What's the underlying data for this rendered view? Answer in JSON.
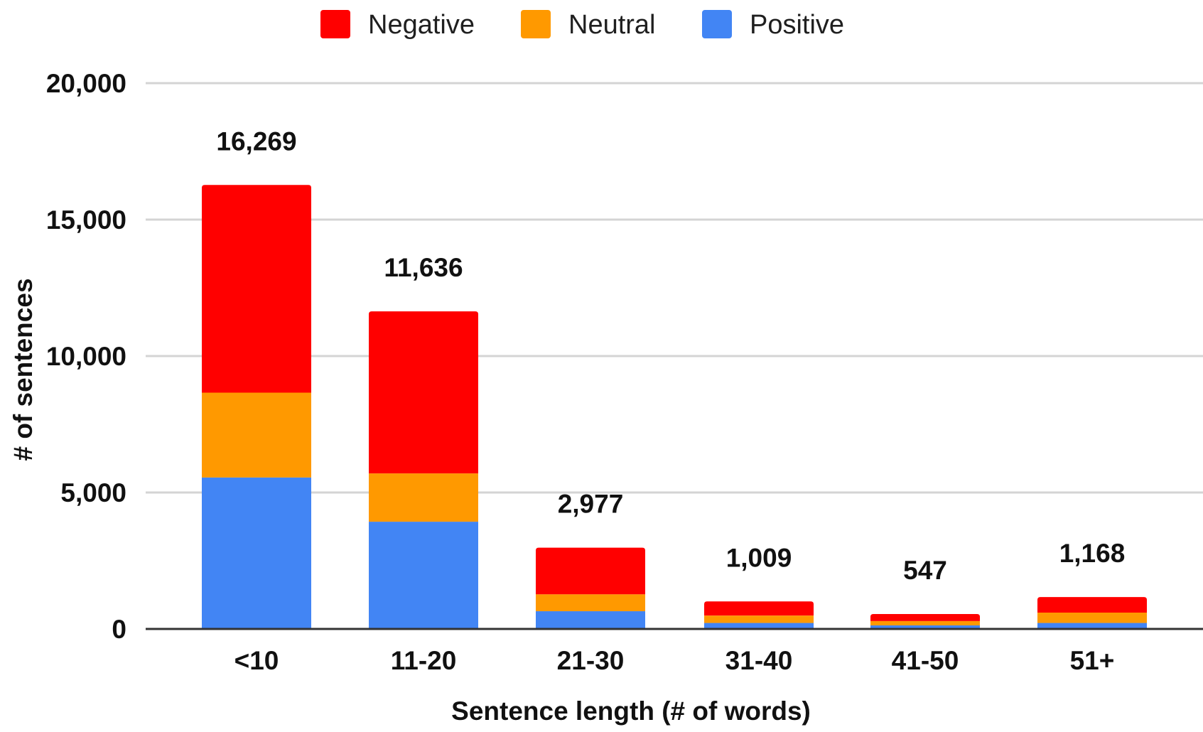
{
  "chart_data": {
    "type": "bar",
    "stacked": true,
    "title": "",
    "xlabel": "Sentence length (# of words)",
    "ylabel": "# of sentences",
    "ylim": [
      0,
      20000
    ],
    "yticks": [
      0,
      5000,
      10000,
      15000,
      20000
    ],
    "ytick_labels": [
      "0",
      "5,000",
      "10,000",
      "15,000",
      "20,000"
    ],
    "categories": [
      "<10",
      "11-20",
      "21-30",
      "31-40",
      "41-50",
      "51+"
    ],
    "series": [
      {
        "name": "Positive",
        "color": "#4285F4",
        "values": [
          5550,
          3930,
          650,
          220,
          130,
          220
        ]
      },
      {
        "name": "Neutral",
        "color": "#FF9900",
        "values": [
          3110,
          1770,
          620,
          270,
          160,
          380
        ]
      },
      {
        "name": "Negative",
        "color": "#FF0000",
        "values": [
          7609,
          5936,
          1707,
          519,
          257,
          568
        ]
      }
    ],
    "totals": [
      16269,
      11636,
      2977,
      1009,
      547,
      1168
    ],
    "total_labels": [
      "16,269",
      "11,636",
      "2,977",
      "1,009",
      "547",
      "1,168"
    ],
    "legend_position": "top",
    "legend_order": [
      "Negative",
      "Neutral",
      "Positive"
    ],
    "grid": true
  }
}
